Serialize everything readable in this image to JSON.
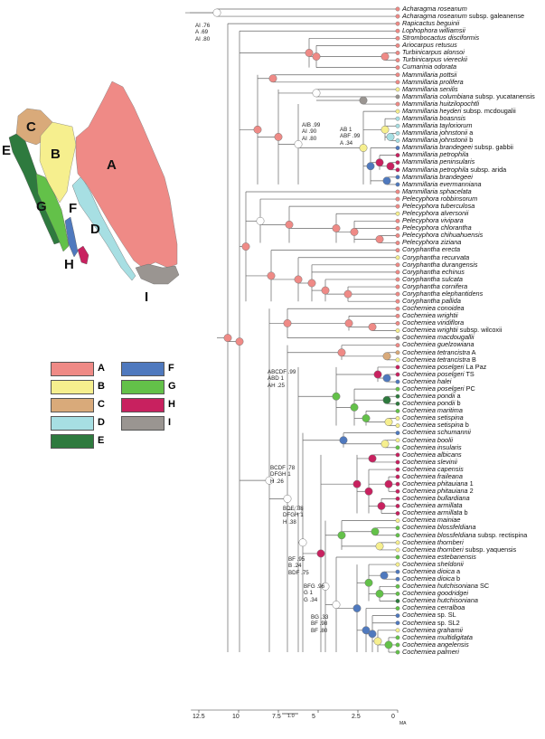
{
  "colors": {
    "A": "#ef8a86",
    "B": "#f6ef8e",
    "C": "#d9aa7a",
    "D": "#a7dfe3",
    "E": "#2e7a3e",
    "F": "#4f79be",
    "G": "#63c149",
    "H": "#c8215f",
    "I": "#9a9591",
    "empty": "#ffffff",
    "line": "#666666"
  },
  "map": {
    "region_labels": [
      "A",
      "B",
      "C",
      "D",
      "E",
      "F",
      "G",
      "H",
      "I"
    ]
  },
  "legend": [
    {
      "key": "A",
      "label": "A"
    },
    {
      "key": "B",
      "label": "B"
    },
    {
      "key": "C",
      "label": "C"
    },
    {
      "key": "D",
      "label": "D"
    },
    {
      "key": "E",
      "label": "E"
    },
    {
      "key": "F",
      "label": "F"
    },
    {
      "key": "G",
      "label": "G"
    },
    {
      "key": "H",
      "label": "H"
    },
    {
      "key": "I",
      "label": "I"
    }
  ],
  "tips": [
    {
      "genus": "Acharagma roseanum",
      "rest": "",
      "state": "A"
    },
    {
      "genus": "Acharagma roseanum",
      "rest": " subsp. galeanense",
      "state": "A"
    },
    {
      "genus": "Rapicactus beguinii",
      "rest": "",
      "state": "A"
    },
    {
      "genus": "Lophophora williamsii",
      "rest": "",
      "state": "A"
    },
    {
      "genus": "Strombocactus disciformis",
      "rest": "",
      "state": "A"
    },
    {
      "genus": "Ariocarpus retusus",
      "rest": "",
      "state": "A"
    },
    {
      "genus": "Turbinicarpus alonsoi",
      "rest": "",
      "state": "A"
    },
    {
      "genus": "Turbinicarpus viereckii",
      "rest": "",
      "state": "A"
    },
    {
      "genus": "Cumarinia odorata",
      "rest": "",
      "state": "A"
    },
    {
      "genus": "Mammillaria pottsii",
      "rest": "",
      "state": "A"
    },
    {
      "genus": "Mammillaria prolifera",
      "rest": "",
      "state": "A"
    },
    {
      "genus": "Mammillaria senilis",
      "rest": "",
      "state": "B"
    },
    {
      "genus": "Mammillaria columbiana",
      "rest": " subsp. yucatanensis",
      "state": "I"
    },
    {
      "genus": "Mammillaria huitzilopochtli",
      "rest": "",
      "state": "A"
    },
    {
      "genus": "Mammillaria heyderi",
      "rest": " subsp. mcdougalii",
      "state": "B"
    },
    {
      "genus": "Mammillaria boasnsis",
      "rest": "",
      "state": "D"
    },
    {
      "genus": "Mammillaria tayloriorum",
      "rest": "",
      "state": "D"
    },
    {
      "genus": "Mammillaria johnstonii",
      "rest": " a",
      "state": "D"
    },
    {
      "genus": "Mammillaria johnstonii",
      "rest": " b",
      "state": "D"
    },
    {
      "genus": "Mammillaria brandegeei",
      "rest": " subsp. gabbii",
      "state": "F"
    },
    {
      "genus": "Mammillaria petrophila",
      "rest": "",
      "state": "H"
    },
    {
      "genus": "Mammillaria peninsularis",
      "rest": "",
      "state": "H"
    },
    {
      "genus": "Mammillaria petrophila",
      "rest": " subsp. arida",
      "state": "H"
    },
    {
      "genus": "Mammillaria brandegeei",
      "rest": "",
      "state": "F"
    },
    {
      "genus": "Mammillaria evermanniana",
      "rest": "",
      "state": "F"
    },
    {
      "genus": "Mammillaria sphacelata",
      "rest": "",
      "state": "A"
    },
    {
      "genus": "Pelecyphora robbinsorum",
      "rest": "",
      "state": "A"
    },
    {
      "genus": "Pelecyphora tuberculosa",
      "rest": "",
      "state": "A"
    },
    {
      "genus": "Pelecyphora alversonii",
      "rest": "",
      "state": "B"
    },
    {
      "genus": "Pelecyphora vivipara",
      "rest": "",
      "state": "A"
    },
    {
      "genus": "Pelecyphora chlorantha",
      "rest": "",
      "state": "A"
    },
    {
      "genus": "Pelecyphora chihuahuensis",
      "rest": "",
      "state": "A"
    },
    {
      "genus": "Pelecyphora ziziana",
      "rest": "",
      "state": "A"
    },
    {
      "genus": "Coryphantha erecta",
      "rest": "",
      "state": "A"
    },
    {
      "genus": "Coryphantha recurvata",
      "rest": "",
      "state": "B"
    },
    {
      "genus": "Coryphantha durangensis",
      "rest": "",
      "state": "A"
    },
    {
      "genus": "Coryphantha echinus",
      "rest": "",
      "state": "A"
    },
    {
      "genus": "Coryphantha sulcata",
      "rest": "",
      "state": "A"
    },
    {
      "genus": "Coryphantha cornifera",
      "rest": "",
      "state": "A"
    },
    {
      "genus": "Coryphantha elephantidens",
      "rest": "",
      "state": "A"
    },
    {
      "genus": "Coryphantha pallida",
      "rest": "",
      "state": "A"
    },
    {
      "genus": "Cochemiea conoidea",
      "rest": "",
      "state": "A"
    },
    {
      "genus": "Cochemiea wrightii",
      "rest": "",
      "state": "A"
    },
    {
      "genus": "Cochemiea viridiflora",
      "rest": "",
      "state": "A"
    },
    {
      "genus": "Cochemiea wrightii",
      "rest": " subsp. wilcoxii",
      "state": "B"
    },
    {
      "genus": "Cochemiea macdougallii",
      "rest": "",
      "state": "I"
    },
    {
      "genus": "Cochemiea guelzowiana",
      "rest": "",
      "state": "A"
    },
    {
      "genus": "Cochemiea tetrancistra",
      "rest": " A",
      "state": "C"
    },
    {
      "genus": "Cochemiea tetrancistra",
      "rest": " B",
      "state": "B"
    },
    {
      "genus": "Cochemiea poselgeri",
      "rest": " La Paz",
      "state": "H"
    },
    {
      "genus": "Cochemiea poselgeri",
      "rest": " TS",
      "state": "H"
    },
    {
      "genus": "Cochemiea halei",
      "rest": "",
      "state": "F"
    },
    {
      "genus": "Cochemiea poselgeri",
      "rest": " PC",
      "state": "G"
    },
    {
      "genus": "Cochemiea pondii",
      "rest": " a",
      "state": "E"
    },
    {
      "genus": "Cochemiea pondii",
      "rest": " b",
      "state": "E"
    },
    {
      "genus": "Cochemiea maritima",
      "rest": "",
      "state": "G"
    },
    {
      "genus": "Cochemiea setispina",
      "rest": "",
      "state": "B"
    },
    {
      "genus": "Cochemiea setispina",
      "rest": " b",
      "state": "B"
    },
    {
      "genus": "Cochemiea schumannii",
      "rest": "",
      "state": "F"
    },
    {
      "genus": "Cochemiea boolii",
      "rest": "",
      "state": "B"
    },
    {
      "genus": "Cochemiea insularis",
      "rest": "",
      "state": "G"
    },
    {
      "genus": "Cochemiea albicans",
      "rest": "",
      "state": "H"
    },
    {
      "genus": "Cochemiea slevinii",
      "rest": "",
      "state": "H"
    },
    {
      "genus": "Cochemiea capensis",
      "rest": "",
      "state": "H"
    },
    {
      "genus": "Cochemiea fraileana",
      "rest": "",
      "state": "H"
    },
    {
      "genus": "Cochemiea phitauiana",
      "rest": " 1",
      "state": "H"
    },
    {
      "genus": "Cochemiea phitauiana",
      "rest": " 2",
      "state": "H"
    },
    {
      "genus": "Cochemiea bullardiana",
      "rest": "",
      "state": "H"
    },
    {
      "genus": "Cochemiea armillata",
      "rest": "",
      "state": "H"
    },
    {
      "genus": "Cochemiea armillata",
      "rest": " b",
      "state": "H"
    },
    {
      "genus": "Cochemiea mainiae",
      "rest": "",
      "state": "B"
    },
    {
      "genus": "Cochemiea blossfeldiana",
      "rest": "",
      "state": "G"
    },
    {
      "genus": "Cochemiea blossfeldiana",
      "rest": " subsp. rectispina",
      "state": "G"
    },
    {
      "genus": "Cochemiea thornberi",
      "rest": "",
      "state": "B"
    },
    {
      "genus": "Cochemiea thornberi",
      "rest": " subsp. yaquensis",
      "state": "B"
    },
    {
      "genus": "Cochemiea estebanensis",
      "rest": "",
      "state": "G"
    },
    {
      "genus": "Cochemiea sheldonii",
      "rest": "",
      "state": "B"
    },
    {
      "genus": "Cochemiea dioica",
      "rest": " a",
      "state": "F"
    },
    {
      "genus": "Cochemiea dioica",
      "rest": " b",
      "state": "F"
    },
    {
      "genus": "Cochemiea hutchisoniana",
      "rest": " SC",
      "state": "G"
    },
    {
      "genus": "Cochemiea goodridgei",
      "rest": "",
      "state": "G"
    },
    {
      "genus": "Cochemiea hutchisoniana",
      "rest": "",
      "state": "E"
    },
    {
      "genus": "Cochemiea cerralboa",
      "rest": "",
      "state": "G"
    },
    {
      "genus": "Cochemiea",
      "rest": " sp. SL",
      "state": "F"
    },
    {
      "genus": "Cochemiea",
      "rest": " sp. SL2",
      "state": "F"
    },
    {
      "genus": "Cochemiea grahamii",
      "rest": "",
      "state": "B"
    },
    {
      "genus": "Cochemiea multidigitata",
      "rest": "",
      "state": "G"
    },
    {
      "genus": "Cochemiea angelensis",
      "rest": "",
      "state": "G"
    },
    {
      "genus": "Cochemiea palmeri",
      "rest": "",
      "state": "G"
    }
  ],
  "node_annotations": [
    {
      "id": "n_root",
      "text": "AI .76\nA .69\nAI .80"
    },
    {
      "id": "n_mam",
      "text": "AIB .99\nAI .90\nAI .80"
    },
    {
      "id": "n_bd",
      "text": "AB 1\nABF .99\nA .34"
    },
    {
      "id": "n_coch",
      "text": "ABCDF .99\nABD 1\nAH .25"
    },
    {
      "id": "n_bcdf",
      "text": "BCDF .78\nDFGH 1\nH .26"
    },
    {
      "id": "n_bdf",
      "text": "BDF .88\nDFGH 1\nH .38"
    },
    {
      "id": "n_bf",
      "text": "BF .95\nB .24\nBDF .75"
    },
    {
      "id": "n_bfg",
      "text": "BFG .96\nG 1\nG .34"
    },
    {
      "id": "n_bg",
      "text": "BG .33\nBF .98\nBF .80"
    }
  ],
  "axis": {
    "ticks": [
      "12.5",
      "10",
      "7.5",
      "5",
      "2.5",
      "0"
    ],
    "tick_values": [
      12.5,
      10,
      7.5,
      5,
      2.5,
      0
    ],
    "unit": "MA",
    "scale_bar_label": "1.0"
  }
}
